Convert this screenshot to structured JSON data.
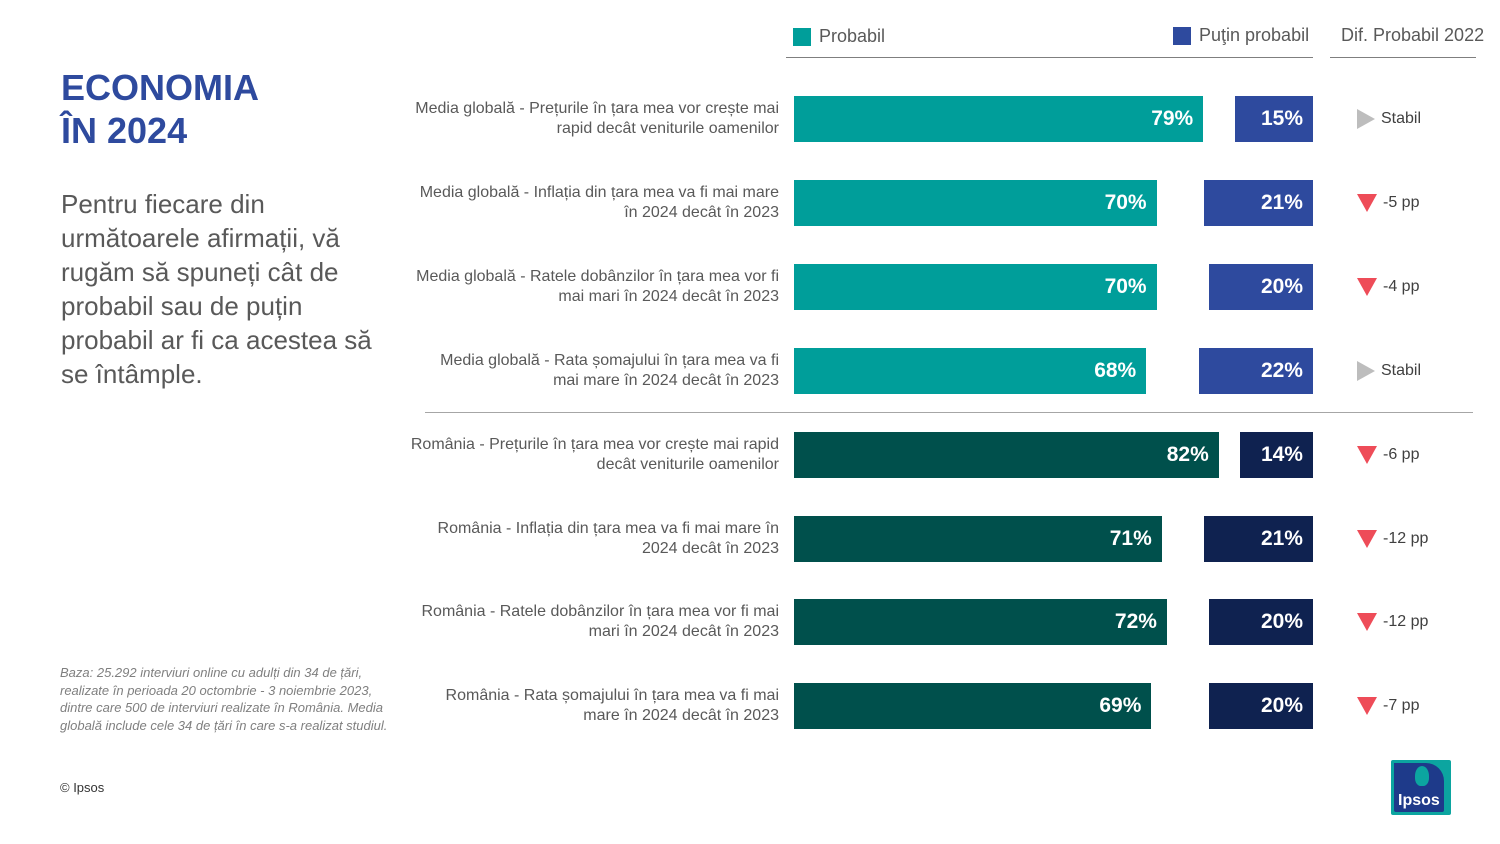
{
  "title_lines": [
    "ECONOMIA",
    "ÎN 2024"
  ],
  "subtitle": "Pentru fiecare din următoarele afirmații, vă rugăm să spuneți cât de probabil sau de puțin probabil ar fi ca acestea să se întâmple.",
  "footnote": "Baza: 25.292 interviuri online cu adulți din 34 de țări, realizate în perioada 20 octombrie - 3 noiembrie 2023, dintre care 500 de interviuri realizate în România. Media globală include cele 34 de țări în care s-a realizat studiul.",
  "copyright": "© Ipsos",
  "logo_text": "Ipsos",
  "legend": {
    "probabil": "Probabil",
    "putin_probabil": "Puţin probabil",
    "diff_header": "Dif. Probabil 2022"
  },
  "colors": {
    "global_likely": "#009E9A",
    "global_unlikely": "#2E4A9E",
    "romania_likely": "#00504C",
    "romania_unlikely": "#0F2250",
    "down_arrow": "#EE4C58",
    "stable_arrow": "#BDBDBD",
    "title": "#2E4A9E"
  },
  "chart_data": {
    "type": "bar",
    "orientation": "horizontal",
    "unit": "%",
    "series": [
      {
        "name": "Probabil",
        "values": [
          79,
          70,
          70,
          68,
          82,
          71,
          72,
          69
        ]
      },
      {
        "name": "Puţin probabil",
        "values": [
          15,
          21,
          20,
          22,
          14,
          21,
          20,
          20
        ]
      }
    ],
    "categories": [
      "Media globală - Prețurile în țara mea vor crește mai rapid decât veniturile oamenilor",
      "Media globală - Inflația din țara mea va fi mai mare în 2024 decât în 2023",
      "Media globală - Ratele dobânzilor în țara mea vor fi mai mari în 2024 decât în 2023",
      "Media globală - Rata șomajului în țara mea va fi mai mare în 2024 decât în 2023",
      "România - Prețurile în țara mea vor crește mai rapid decât veniturile oamenilor",
      "România - Inflația din țara mea va fi mai mare în 2024 decât în 2023",
      "România - Ratele dobânzilor în țara mea vor fi mai mari în 2024 decât în 2023",
      "România - Rata șomajului în țara mea va fi mai mare în 2024 decât în 2023"
    ],
    "groups": [
      "global",
      "global",
      "global",
      "global",
      "romania",
      "romania",
      "romania",
      "romania"
    ],
    "diff_vs_2022": [
      {
        "trend": "stable",
        "label": "Stabil"
      },
      {
        "trend": "down",
        "label": "-5 pp"
      },
      {
        "trend": "down",
        "label": "-4 pp"
      },
      {
        "trend": "stable",
        "label": "Stabil"
      },
      {
        "trend": "down",
        "label": "-6 pp"
      },
      {
        "trend": "down",
        "label": "-12 pp"
      },
      {
        "trend": "down",
        "label": "-12 pp"
      },
      {
        "trend": "down",
        "label": "-7 pp"
      }
    ],
    "xlim": [
      0,
      100
    ],
    "legend_position": "top"
  }
}
